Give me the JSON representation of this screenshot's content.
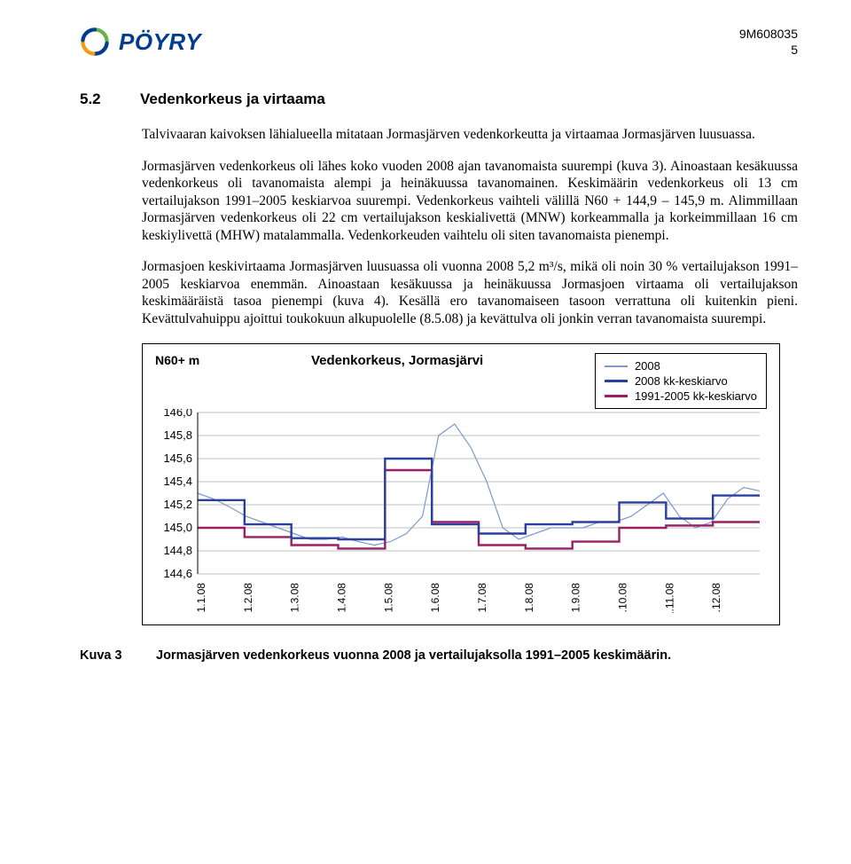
{
  "document": {
    "id": "9M608035",
    "page_number": "5",
    "logo_text": "PÖYRY",
    "logo_colors": {
      "blue": "#003d8f",
      "green": "#62b545",
      "orange": "#f39c12"
    }
  },
  "section": {
    "number": "5.2",
    "title": "Vedenkorkeus ja virtaama"
  },
  "paragraphs": {
    "p1": "Talvivaaran kaivoksen lähialueella mitataan Jormasjärven vedenkorkeutta ja virtaamaa Jormasjärven luusuassa.",
    "p2": "Jormasjärven vedenkorkeus oli lähes koko vuoden 2008 ajan tavanomaista suurempi (kuva 3). Ainoastaan kesäkuussa vedenkorkeus oli tavanomaista alempi ja heinäkuussa tavanomainen. Keskimäärin vedenkorkeus oli 13 cm vertailujakson 1991–2005 keskiarvoa suurempi. Vedenkorkeus vaihteli välillä N60 + 144,9 – 145,9 m. Alimmillaan Jormasjärven vedenkorkeus oli 22 cm vertailujakson keskialivettä (MNW) korkeammalla ja korkeimmillaan 16 cm keskiylivettä (MHW) matalammalla. Vedenkorkeuden vaihtelu oli siten tavanomaista pienempi.",
    "p3": "Jormasjoen keskivirtaama Jormasjärven luusuassa oli vuonna 2008 5,2 m³/s, mikä oli noin 30 % vertailujakson 1991–2005 keskiarvoa enemmän. Ainoastaan kesäkuussa ja heinäkuussa Jormasjoen virtaama oli vertailujakson keskimääräistä tasoa pienempi (kuva 4). Kesällä ero tavanomaiseen tasoon verrattuna oli kuitenkin pieni. Kevättulvahuippu ajoittui toukokuun alkupuolelle (8.5.08) ja kevättulva oli jonkin verran tavanomaista suurempi."
  },
  "chart": {
    "type": "line-step",
    "title": "Vedenkorkeus, Jormasjärvi",
    "y_axis_title": "N60+ m",
    "y_ticks": [
      "146,0",
      "145,8",
      "145,6",
      "145,4",
      "145,2",
      "145,0",
      "144,8",
      "144,6"
    ],
    "ylim": [
      144.6,
      146.0
    ],
    "x_labels": [
      "1.1.08",
      "1.2.08",
      "1.3.08",
      "1.4.08",
      "1.5.08",
      "1.6.08",
      "1.7.08",
      "1.8.08",
      "1.9.08",
      "1.10.08",
      "1.11.08",
      "1.12.08"
    ],
    "grid_color": "#bfbfbf",
    "background_color": "#ffffff",
    "series": {
      "s_2008": {
        "label": "2008",
        "color": "#7e99cc",
        "width": 1.2,
        "points": [
          145.3,
          145.25,
          145.18,
          145.1,
          145.05,
          145.0,
          144.95,
          144.9,
          144.9,
          144.92,
          144.88,
          144.85,
          144.88,
          144.95,
          145.1,
          145.8,
          145.9,
          145.7,
          145.4,
          145.0,
          144.9,
          144.95,
          145.0,
          145.0,
          145.0,
          145.05,
          145.05,
          145.1,
          145.2,
          145.3,
          145.1,
          145.0,
          145.05,
          145.25,
          145.35,
          145.32
        ]
      },
      "s_2008_kk": {
        "label": "2008 kk-keskiarvo",
        "color": "#2b3f9e",
        "width": 2.4,
        "step_values": [
          145.24,
          145.03,
          144.91,
          144.9,
          145.6,
          145.03,
          144.95,
          145.03,
          145.05,
          145.22,
          145.08,
          145.28
        ]
      },
      "s_ref": {
        "label": "1991-2005 kk-keskiarvo",
        "color": "#9b1f63",
        "width": 2.4,
        "step_values": [
          145.0,
          144.92,
          144.85,
          144.82,
          145.5,
          145.05,
          144.85,
          144.82,
          144.88,
          145.0,
          145.02,
          145.05
        ]
      }
    }
  },
  "figure": {
    "label": "Kuva 3",
    "caption": "Jormasjärven vedenkorkeus vuonna 2008 ja vertailujaksolla 1991–2005 keskimäärin."
  }
}
